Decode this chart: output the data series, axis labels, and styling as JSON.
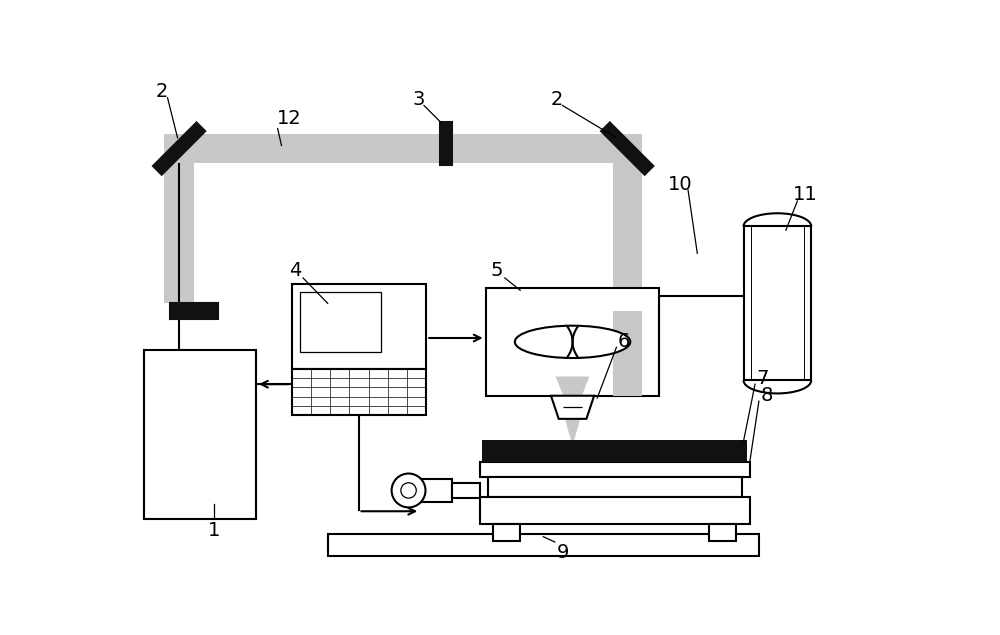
{
  "bg_color": "#ffffff",
  "line_color": "#000000",
  "gray_color": "#c8c8c8",
  "dark_color": "#111111",
  "label_color": "#000000",
  "fig_width": 10.0,
  "fig_height": 6.35
}
